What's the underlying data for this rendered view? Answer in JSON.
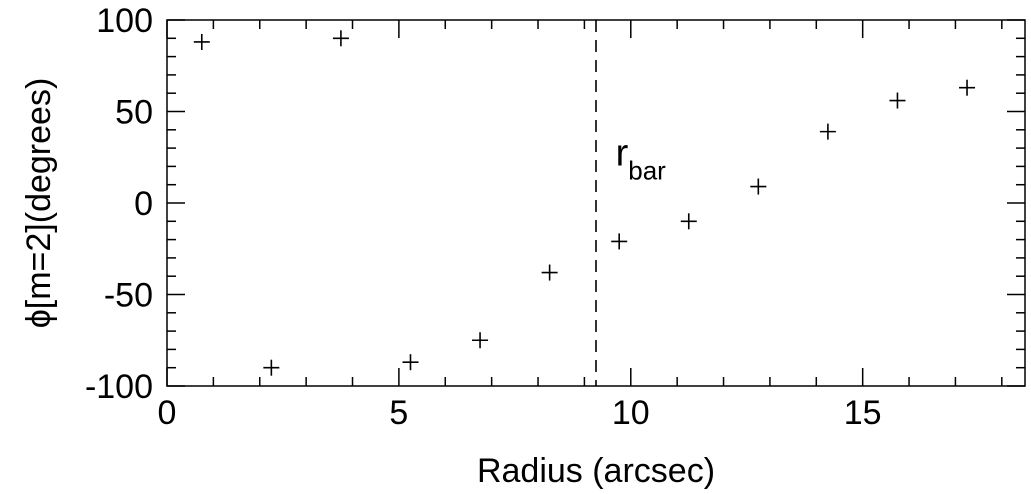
{
  "chart_data": {
    "type": "scatter",
    "title": "",
    "xlabel": "Radius (arcsec)",
    "ylabel": "ϕ[m=2](degrees)",
    "xlim": [
      0,
      18.5
    ],
    "ylim": [
      -100,
      100
    ],
    "xticks": [
      0,
      5,
      10,
      15
    ],
    "xtick_labels": [
      "0",
      "5",
      "10",
      "15"
    ],
    "yticks": [
      -100,
      -50,
      0,
      50,
      100
    ],
    "ytick_labels": [
      "-100",
      "-50",
      "0",
      "50",
      "100"
    ],
    "grid": false,
    "marker": "plus",
    "marker_color": "#000000",
    "series": [
      {
        "x": [
          0.75,
          2.25,
          3.75,
          5.25,
          6.75,
          8.25,
          9.75,
          11.25,
          12.75,
          14.25,
          15.75,
          17.25
        ],
        "y": [
          88,
          -90,
          90,
          -87,
          -75,
          -38,
          -21,
          -10,
          9,
          39,
          56,
          63
        ]
      }
    ],
    "annotations": [
      {
        "type": "vline",
        "x": 9.25,
        "style": "dashed"
      },
      {
        "type": "text",
        "text": "r",
        "subscript": "bar",
        "x": 9.5,
        "y": 27
      }
    ]
  }
}
